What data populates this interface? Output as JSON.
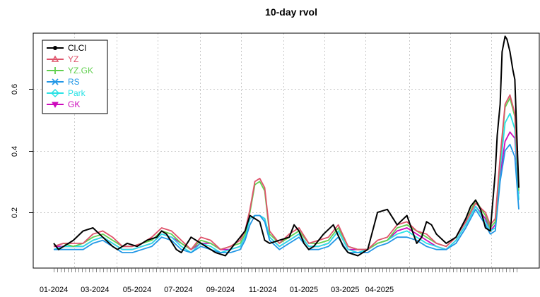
{
  "chart_data": {
    "type": "line",
    "title": "10-day rvol",
    "xlabel": "",
    "ylabel": "",
    "x_tick_labels": [
      "01-2024",
      "03-2024",
      "05-2024",
      "07-2024",
      "09-2024",
      "11-2024",
      "01-2025",
      "03-2025",
      "04-2025"
    ],
    "y_ticks": [
      0.2,
      0.4,
      0.6
    ],
    "y_tick_labels": [
      "0.2",
      "0.4",
      "0.6"
    ],
    "ylim": [
      0.02,
      0.78
    ],
    "x_range_days": [
      0,
      474
    ],
    "grid": true,
    "legend_position": "top-left",
    "series": [
      {
        "name": "Cl.Cl",
        "color": "#000000",
        "marker": "circle",
        "x": [
          0,
          5,
          10,
          20,
          30,
          40,
          50,
          60,
          65,
          75,
          85,
          95,
          105,
          110,
          115,
          125,
          130,
          140,
          150,
          160,
          165,
          175,
          185,
          190,
          195,
          200,
          205,
          210,
          215,
          220,
          230,
          240,
          245,
          250,
          255,
          260,
          265,
          270,
          275,
          285,
          295,
          300,
          310,
          320,
          325,
          330,
          340,
          350,
          360,
          370,
          375,
          380,
          385,
          390,
          400,
          410,
          420,
          425,
          430,
          435,
          440,
          445,
          450,
          452,
          455,
          457,
          460,
          462,
          465,
          468,
          470,
          472,
          474
        ],
        "y": [
          0.1,
          0.08,
          0.09,
          0.11,
          0.14,
          0.15,
          0.12,
          0.09,
          0.08,
          0.1,
          0.09,
          0.11,
          0.12,
          0.14,
          0.13,
          0.08,
          0.07,
          0.12,
          0.1,
          0.08,
          0.07,
          0.06,
          0.1,
          0.12,
          0.14,
          0.19,
          0.18,
          0.17,
          0.11,
          0.1,
          0.11,
          0.12,
          0.16,
          0.14,
          0.1,
          0.08,
          0.09,
          0.11,
          0.13,
          0.16,
          0.09,
          0.07,
          0.06,
          0.08,
          0.14,
          0.2,
          0.21,
          0.16,
          0.19,
          0.1,
          0.12,
          0.17,
          0.16,
          0.13,
          0.1,
          0.12,
          0.18,
          0.22,
          0.24,
          0.21,
          0.15,
          0.14,
          0.33,
          0.45,
          0.55,
          0.72,
          0.77,
          0.76,
          0.72,
          0.66,
          0.63,
          0.45,
          0.28
        ]
      },
      {
        "name": "YZ",
        "color": "#DF536B",
        "marker": "triangle",
        "x": [
          0,
          10,
          20,
          30,
          40,
          50,
          60,
          70,
          80,
          90,
          100,
          110,
          120,
          130,
          140,
          150,
          160,
          170,
          180,
          190,
          195,
          200,
          205,
          210,
          215,
          220,
          230,
          240,
          250,
          260,
          270,
          280,
          290,
          300,
          310,
          320,
          330,
          340,
          350,
          360,
          370,
          380,
          390,
          400,
          410,
          420,
          430,
          440,
          445,
          450,
          455,
          460,
          465,
          470,
          474
        ],
        "y": [
          0.09,
          0.1,
          0.1,
          0.1,
          0.13,
          0.14,
          0.12,
          0.09,
          0.09,
          0.1,
          0.12,
          0.15,
          0.14,
          0.11,
          0.08,
          0.12,
          0.11,
          0.08,
          0.09,
          0.11,
          0.14,
          0.21,
          0.3,
          0.31,
          0.28,
          0.14,
          0.1,
          0.13,
          0.15,
          0.1,
          0.11,
          0.12,
          0.16,
          0.09,
          0.08,
          0.08,
          0.11,
          0.12,
          0.16,
          0.17,
          0.14,
          0.13,
          0.1,
          0.09,
          0.12,
          0.17,
          0.23,
          0.2,
          0.16,
          0.18,
          0.38,
          0.55,
          0.58,
          0.52,
          0.28
        ]
      },
      {
        "name": "YZ.GK",
        "color": "#61D04F",
        "marker": "plus",
        "x": [
          0,
          10,
          20,
          30,
          40,
          50,
          60,
          70,
          80,
          90,
          100,
          110,
          120,
          130,
          140,
          150,
          160,
          170,
          180,
          190,
          195,
          200,
          205,
          210,
          215,
          220,
          230,
          240,
          250,
          260,
          270,
          280,
          290,
          300,
          310,
          320,
          330,
          340,
          350,
          360,
          370,
          380,
          390,
          400,
          410,
          420,
          430,
          440,
          445,
          450,
          455,
          460,
          465,
          470,
          474
        ],
        "y": [
          0.09,
          0.1,
          0.09,
          0.1,
          0.12,
          0.13,
          0.11,
          0.09,
          0.09,
          0.1,
          0.11,
          0.14,
          0.13,
          0.1,
          0.08,
          0.11,
          0.1,
          0.08,
          0.09,
          0.1,
          0.13,
          0.2,
          0.29,
          0.3,
          0.27,
          0.13,
          0.1,
          0.12,
          0.14,
          0.1,
          0.1,
          0.11,
          0.15,
          0.09,
          0.08,
          0.08,
          0.1,
          0.11,
          0.15,
          0.16,
          0.14,
          0.12,
          0.1,
          0.09,
          0.12,
          0.17,
          0.24,
          0.19,
          0.15,
          0.17,
          0.37,
          0.54,
          0.57,
          0.51,
          0.27
        ]
      },
      {
        "name": "RS",
        "color": "#2297E6",
        "marker": "cross",
        "x": [
          0,
          10,
          20,
          30,
          40,
          50,
          60,
          70,
          80,
          90,
          100,
          110,
          120,
          130,
          140,
          150,
          160,
          170,
          180,
          190,
          195,
          200,
          205,
          210,
          215,
          220,
          230,
          240,
          250,
          260,
          270,
          280,
          290,
          300,
          310,
          320,
          330,
          340,
          350,
          360,
          370,
          380,
          390,
          400,
          410,
          420,
          430,
          440,
          445,
          450,
          455,
          460,
          465,
          470,
          474
        ],
        "y": [
          0.08,
          0.08,
          0.08,
          0.08,
          0.1,
          0.11,
          0.09,
          0.07,
          0.07,
          0.08,
          0.09,
          0.12,
          0.11,
          0.08,
          0.07,
          0.09,
          0.08,
          0.07,
          0.07,
          0.08,
          0.11,
          0.16,
          0.19,
          0.19,
          0.17,
          0.11,
          0.08,
          0.1,
          0.12,
          0.08,
          0.08,
          0.09,
          0.12,
          0.07,
          0.07,
          0.07,
          0.09,
          0.1,
          0.12,
          0.12,
          0.11,
          0.09,
          0.08,
          0.08,
          0.1,
          0.15,
          0.21,
          0.16,
          0.13,
          0.14,
          0.3,
          0.4,
          0.42,
          0.38,
          0.21
        ]
      },
      {
        "name": "Park",
        "color": "#28E2E5",
        "marker": "diamond",
        "x": [
          0,
          10,
          20,
          30,
          40,
          50,
          60,
          70,
          80,
          90,
          100,
          110,
          120,
          130,
          140,
          150,
          160,
          170,
          180,
          190,
          195,
          200,
          205,
          210,
          215,
          220,
          230,
          240,
          250,
          260,
          270,
          280,
          290,
          300,
          310,
          320,
          330,
          340,
          350,
          360,
          370,
          380,
          390,
          400,
          410,
          420,
          430,
          440,
          445,
          450,
          455,
          460,
          465,
          470,
          474
        ],
        "y": [
          0.08,
          0.09,
          0.09,
          0.09,
          0.11,
          0.12,
          0.1,
          0.08,
          0.08,
          0.09,
          0.1,
          0.13,
          0.12,
          0.09,
          0.07,
          0.1,
          0.09,
          0.07,
          0.08,
          0.09,
          0.12,
          0.18,
          0.19,
          0.19,
          0.18,
          0.12,
          0.09,
          0.11,
          0.13,
          0.09,
          0.09,
          0.1,
          0.14,
          0.08,
          0.07,
          0.08,
          0.1,
          0.11,
          0.13,
          0.14,
          0.12,
          0.1,
          0.09,
          0.08,
          0.11,
          0.16,
          0.22,
          0.17,
          0.14,
          0.15,
          0.34,
          0.49,
          0.52,
          0.47,
          0.24
        ]
      },
      {
        "name": "GK",
        "color": "#CD0BBC",
        "marker": "triangle-down",
        "x": [
          0,
          10,
          20,
          30,
          40,
          50,
          60,
          70,
          80,
          90,
          100,
          110,
          120,
          130,
          140,
          150,
          160,
          170,
          180,
          190,
          195,
          200,
          205,
          210,
          215,
          220,
          230,
          240,
          250,
          260,
          270,
          280,
          290,
          300,
          310,
          320,
          330,
          340,
          350,
          360,
          370,
          380,
          390,
          400,
          410,
          420,
          430,
          440,
          445,
          450,
          455,
          460,
          465,
          470,
          474
        ],
        "y": [
          0.09,
          0.09,
          0.09,
          0.09,
          0.11,
          0.12,
          0.1,
          0.08,
          0.08,
          0.09,
          0.1,
          0.13,
          0.12,
          0.1,
          0.08,
          0.1,
          0.1,
          0.08,
          0.08,
          0.09,
          0.12,
          0.18,
          0.19,
          0.19,
          0.18,
          0.12,
          0.09,
          0.11,
          0.13,
          0.09,
          0.09,
          0.1,
          0.14,
          0.08,
          0.08,
          0.08,
          0.1,
          0.11,
          0.14,
          0.15,
          0.13,
          0.11,
          0.09,
          0.08,
          0.11,
          0.16,
          0.22,
          0.18,
          0.14,
          0.16,
          0.32,
          0.43,
          0.46,
          0.44,
          0.26
        ]
      }
    ]
  }
}
